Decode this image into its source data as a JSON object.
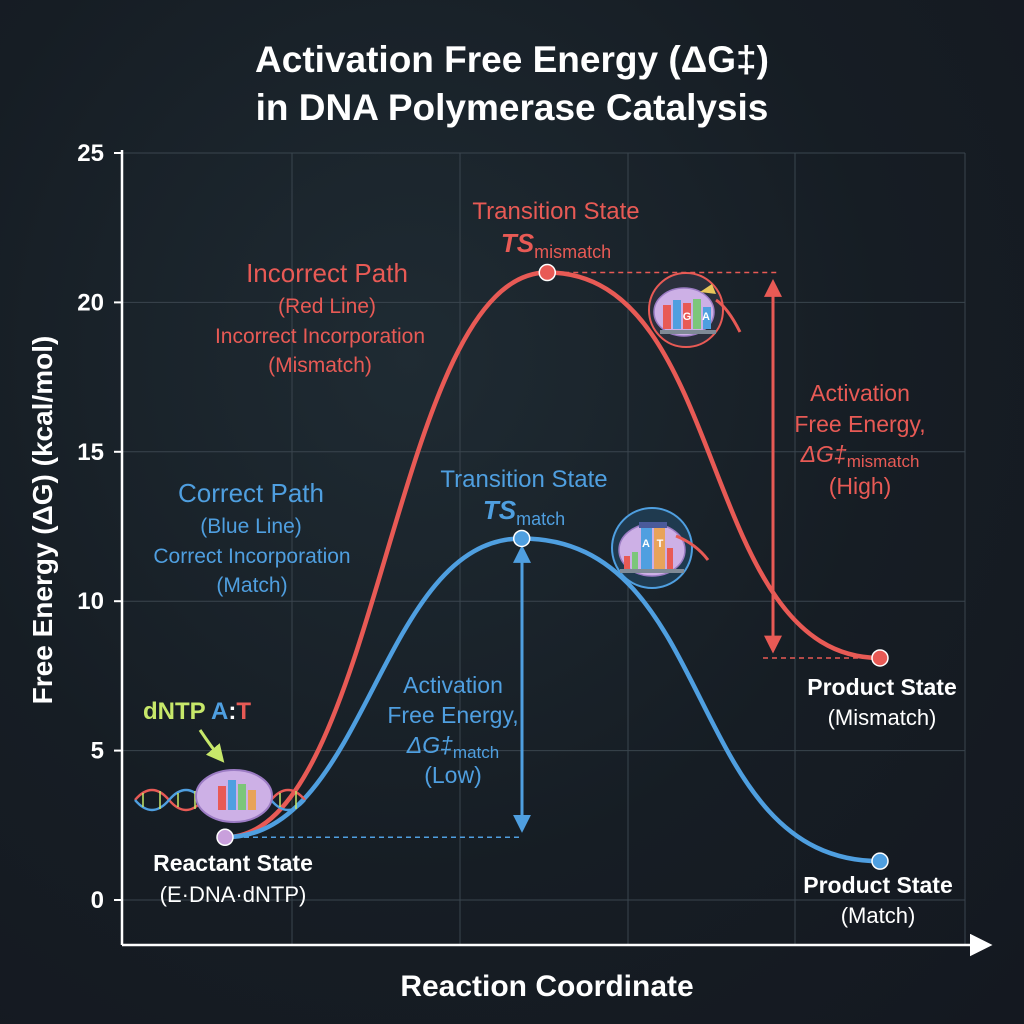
{
  "colors": {
    "background": "#161d24",
    "axis": "#ffffff",
    "grid": "#3a454e",
    "correct": "#4f9fe0",
    "incorrect": "#e85a55",
    "dntp_label": "#c7e86a",
    "node_reactant": "#c9a0dc"
  },
  "chart_data": {
    "type": "line",
    "title_line1": "Activation Free Energy (ΔG‡)",
    "title_line2": "in DNA Polymerase Catalysis",
    "xlabel": "Reaction Coordinate",
    "ylabel": "Free Energy (ΔG) (kcal/mol)",
    "ylim": [
      0,
      25
    ],
    "yticks": [
      0,
      5,
      10,
      15,
      20,
      25
    ],
    "grid": true,
    "x": [
      0,
      0.5,
      1
    ],
    "series": [
      {
        "key": "incorrect",
        "color": "#e85a55",
        "values": [
          2.1,
          21.0,
          8.1
        ],
        "label_lines": [
          "Incorrect Path",
          "(Red Line)",
          "Incorrect Incorporation",
          "(Mismatch)"
        ],
        "ts_label": "Transition State",
        "ts_symbol": "TS",
        "ts_sub": "mismatch",
        "barrier_label_lines": [
          "Activation",
          "Free Energy,"
        ],
        "barrier_symbol": "ΔG‡",
        "barrier_sub": "mismatch",
        "barrier_qualifier": "(High)",
        "product_title": "Product State",
        "product_sub": "(Mismatch)",
        "icon_letters": [
          "G",
          "A"
        ]
      },
      {
        "key": "correct",
        "color": "#4f9fe0",
        "values": [
          2.1,
          12.1,
          1.3
        ],
        "label_lines": [
          "Correct Path",
          "(Blue Line)",
          "Correct Incorporation",
          "(Match)"
        ],
        "ts_label": "Transition State",
        "ts_symbol": "TS",
        "ts_sub": "match",
        "barrier_label_lines": [
          "Activation",
          "Free Energy,"
        ],
        "barrier_symbol": "ΔG‡",
        "barrier_sub": "match",
        "barrier_qualifier": "(Low)",
        "product_title": "Product State",
        "product_sub": "(Match)",
        "icon_letters": [
          "A",
          "T"
        ]
      }
    ],
    "reactant": {
      "title": "Reactant State",
      "sub": "(E·DNA·dNTP)",
      "dntp_prefix": "dNTP ",
      "dntp_a": "A",
      "dntp_colon": ":",
      "dntp_t": "T"
    }
  }
}
